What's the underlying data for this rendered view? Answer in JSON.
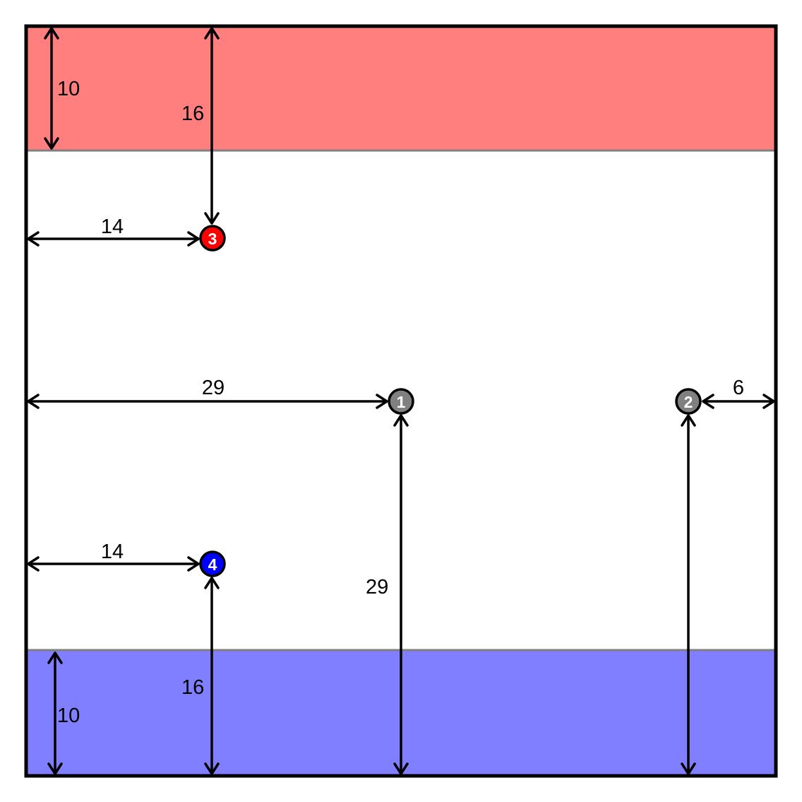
{
  "colors": {
    "top_zone": "#ff7f7f",
    "bottom_zone": "#7f7fff",
    "zone_edge": "#808080",
    "frame": "#000000",
    "marker_neutral": "#808080",
    "marker_red": "#ff0000",
    "marker_blue": "#0000ff"
  },
  "markers": [
    {
      "id": "1",
      "label": "1",
      "color_key": "marker_neutral"
    },
    {
      "id": "2",
      "label": "2",
      "color_key": "marker_neutral"
    },
    {
      "id": "3",
      "label": "3",
      "color_key": "marker_red"
    },
    {
      "id": "4",
      "label": "4",
      "color_key": "marker_blue"
    }
  ],
  "dimensions": {
    "top_zone_depth": "10",
    "bottom_zone_depth": "10",
    "marker3_from_top": "16",
    "marker3_from_left": "14",
    "marker1_from_left": "29",
    "marker2_from_right": "6",
    "marker4_from_left": "14",
    "marker1_from_bottom": "29",
    "marker4_from_bottom": "16"
  }
}
